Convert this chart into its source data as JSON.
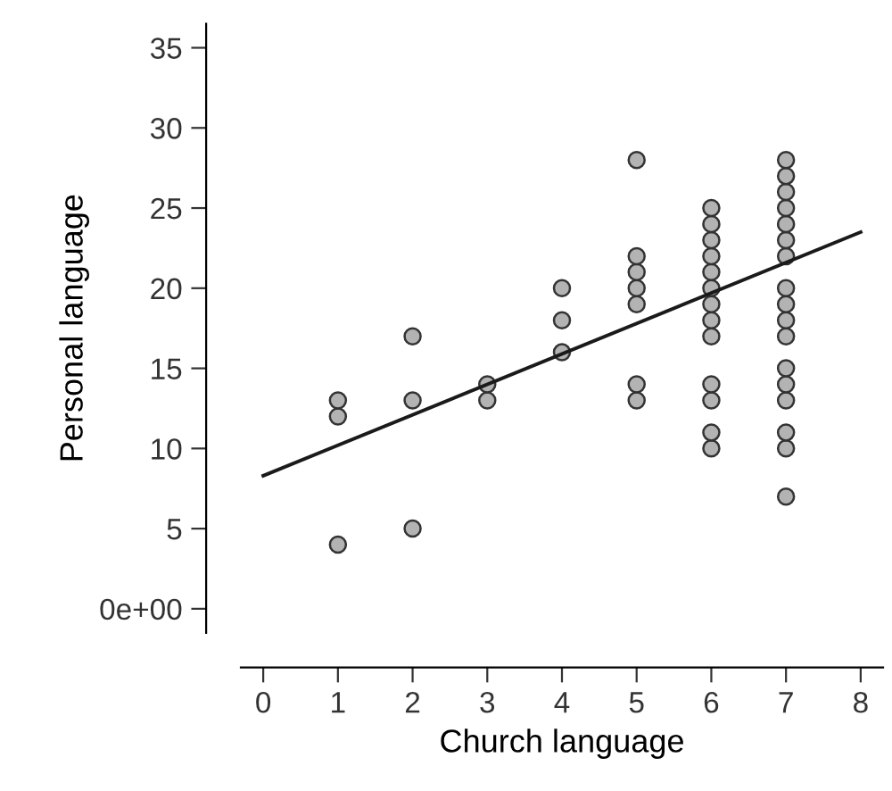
{
  "chart_data": {
    "type": "scatter",
    "xlabel": "Church language",
    "ylabel": "Personal language",
    "xlim": [
      -0.3,
      8.3
    ],
    "ylim": [
      -1.5,
      36.5
    ],
    "xticks": [
      0,
      1,
      2,
      3,
      4,
      5,
      6,
      7,
      8
    ],
    "yticks": [
      {
        "value": 0,
        "label": "0e+00"
      },
      5,
      10,
      15,
      20,
      25,
      30,
      35
    ],
    "grid": false,
    "series": [
      {
        "color": "#b3b3b3",
        "marker": "circle",
        "x": [
          1,
          1,
          1,
          2,
          2,
          2,
          3,
          3,
          4,
          4,
          4,
          5,
          5,
          5,
          5,
          5,
          5,
          5,
          6,
          6,
          6,
          6,
          6,
          6,
          6,
          6,
          6,
          6,
          6,
          6,
          6,
          7,
          7,
          7,
          7,
          7,
          7,
          7,
          7,
          7,
          7,
          7,
          7,
          7,
          7,
          7,
          7,
          7
        ],
        "values": [
          4,
          12,
          13,
          5,
          13,
          17,
          13,
          14,
          16,
          18,
          20,
          13,
          14,
          19,
          20,
          21,
          22,
          28,
          10,
          11,
          13,
          14,
          17,
          18,
          19,
          20,
          21,
          22,
          23,
          24,
          25,
          7,
          10,
          11,
          13,
          14,
          15,
          17,
          18,
          19,
          20,
          22,
          23,
          24,
          25,
          26,
          27,
          28
        ]
      },
      {
        "type": "line",
        "marker": "none",
        "color": "#1a1a1a",
        "x": [
          0,
          8
        ],
        "values": [
          8.3,
          23.5
        ]
      }
    ]
  }
}
